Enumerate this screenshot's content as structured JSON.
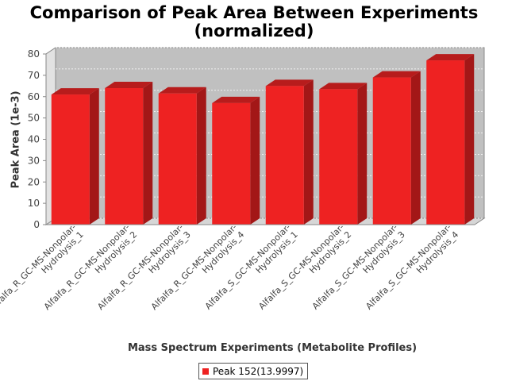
{
  "chart_data": {
    "type": "bar",
    "title_lines": [
      "Comparison of Peak Area Between Experiments",
      "(normalized)"
    ],
    "xlabel": "Mass Spectrum Experiments (Metabolite Profiles)",
    "ylabel": "Peak Area (1e-3)",
    "ylim": [
      0,
      80
    ],
    "yticks": [
      0,
      10,
      20,
      30,
      40,
      50,
      60,
      70,
      80
    ],
    "grid": true,
    "legend_position": "bottom",
    "categories": [
      [
        "Alfalfa_R_GC-MS-Nonpolar-",
        "Hydrolysis_1"
      ],
      [
        "Alfalfa_R_GC-MS-Nonpolar-",
        "Hydrolysis_2"
      ],
      [
        "Alfalfa_R_GC-MS-Nonpolar-",
        "Hydrolysis_3"
      ],
      [
        "Alfalfa_R_GC-MS-Nonpolar-",
        "Hydrolysis_4"
      ],
      [
        "Alfalfa_S_GC-MS-Nonpolar-",
        "Hydrolysis_1"
      ],
      [
        "Alfalfa_S_GC-MS-Nonpolar-",
        "Hydrolysis_2"
      ],
      [
        "Alfalfa_S_GC-MS-Nonpolar-",
        "Hydrolysis_3"
      ],
      [
        "Alfalfa_S_GC-MS-Nonpolar-",
        "Hydrolysis_4"
      ]
    ],
    "series": [
      {
        "name": "Peak 152(13.9997)",
        "color": "#ee2222",
        "values": [
          61,
          64,
          61.5,
          57,
          65,
          63.5,
          69,
          77
        ]
      }
    ],
    "colors": {
      "plot_background": "#c0c0c0",
      "bar_front": "#ee2222",
      "bar_top": "#b71c1c",
      "bar_side": "#a31717"
    }
  }
}
